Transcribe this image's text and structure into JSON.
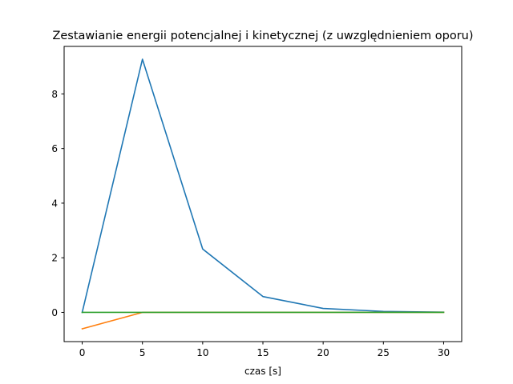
{
  "chart_data": {
    "type": "line",
    "title": "Zestawianie energii potencjalnej i kinetycznej (z uwzględnieniem oporu)",
    "xlabel": "czas [s]",
    "ylabel": "",
    "xlim": [
      -1.5,
      31.5
    ],
    "ylim": [
      -1.07,
      9.74
    ],
    "x_ticks": [
      0,
      5,
      10,
      15,
      20,
      25,
      30
    ],
    "y_ticks": [
      0,
      2,
      4,
      6,
      8
    ],
    "grid": false,
    "legend": "none",
    "series": [
      {
        "color": "#1f77b4",
        "x": [
          0,
          5,
          10,
          15,
          20,
          25,
          30
        ],
        "y": [
          0,
          9.27,
          2.32,
          0.58,
          0.145,
          0.036,
          0.009
        ]
      },
      {
        "color": "#ff7f0e",
        "x": [
          0,
          5,
          10,
          15,
          20,
          25,
          30
        ],
        "y": [
          -0.6,
          0,
          0,
          0,
          0,
          0,
          0
        ]
      },
      {
        "color": "#2ca02c",
        "x": [
          0,
          5,
          10,
          15,
          20,
          25,
          30
        ],
        "y": [
          0,
          0,
          0,
          0,
          0,
          0,
          0
        ]
      }
    ]
  }
}
